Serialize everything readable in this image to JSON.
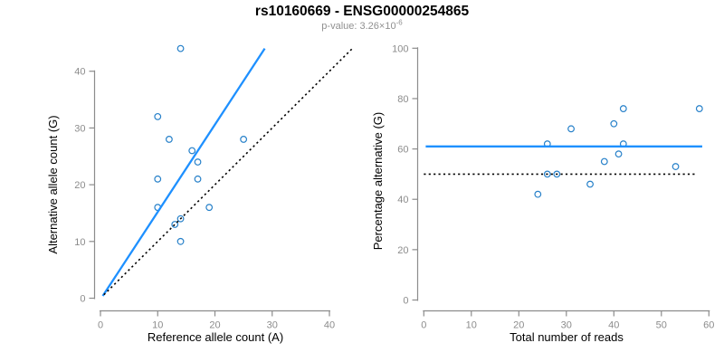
{
  "header": {
    "title": "rs10160669 - ENSG00000254865",
    "subtitle_base": "p-value: 3.26×10",
    "subtitle_exponent": "-6"
  },
  "colors": {
    "accent_blue": "#1E90FF",
    "point_blue": "#2680c9",
    "axis_gray": "#8c8c8c",
    "subtitle_gray": "#909090",
    "dotted_black": "#000000",
    "background": "#ffffff"
  },
  "chart_data": [
    {
      "type": "scatter",
      "panel": "left",
      "xlabel": "Reference allele count (A)",
      "ylabel": "Alternative allele count (G)",
      "xlim": [
        0,
        40
      ],
      "ylim": [
        0,
        40
      ],
      "xticks": [
        0,
        10,
        20,
        30,
        40
      ],
      "yticks": [
        0,
        10,
        20,
        30,
        40
      ],
      "grid": false,
      "legend": null,
      "points": [
        [
          14,
          44
        ],
        [
          10,
          32
        ],
        [
          12,
          28
        ],
        [
          25,
          28
        ],
        [
          16,
          26
        ],
        [
          17,
          24
        ],
        [
          10,
          21
        ],
        [
          17,
          21
        ],
        [
          10,
          16
        ],
        [
          19,
          16
        ],
        [
          14,
          14
        ],
        [
          13,
          13
        ],
        [
          14,
          10
        ]
      ],
      "lines": [
        {
          "name": "fit-line",
          "style": "solid",
          "color": "#1E90FF",
          "width": 2.3,
          "from": [
            0.4,
            0.4
          ],
          "to": [
            28.7,
            44
          ],
          "slope": 1.53
        },
        {
          "name": "identity-line",
          "style": "dotted",
          "color": "#000000",
          "width": 1.6,
          "from": [
            0.6,
            0.6
          ],
          "to": [
            44.2,
            44.2
          ],
          "slope": 1
        }
      ]
    },
    {
      "type": "scatter",
      "panel": "right",
      "xlabel": "Total number of reads",
      "ylabel": "Percentage alternative (G)",
      "xlim": [
        0,
        60
      ],
      "ylim": [
        0,
        100
      ],
      "xticks": [
        0,
        10,
        20,
        30,
        40,
        50,
        60
      ],
      "yticks": [
        0,
        20,
        40,
        60,
        80,
        100
      ],
      "grid": false,
      "legend": null,
      "points": [
        [
          24,
          42
        ],
        [
          26,
          50
        ],
        [
          26,
          62
        ],
        [
          28,
          50
        ],
        [
          31,
          68
        ],
        [
          35,
          46
        ],
        [
          38,
          55
        ],
        [
          40,
          70
        ],
        [
          41,
          58
        ],
        [
          42,
          62
        ],
        [
          42,
          76
        ],
        [
          53,
          53
        ],
        [
          58,
          76
        ]
      ],
      "lines": [
        {
          "name": "mean-percentage-line",
          "style": "solid",
          "color": "#1E90FF",
          "width": 2.3,
          "y": 61,
          "from_x": 0.4,
          "to_x": 58.6
        },
        {
          "name": "null-50pct-line",
          "style": "dotted",
          "color": "#000000",
          "width": 1.6,
          "y": 50,
          "from_x": 0,
          "to_x": 57.5
        }
      ]
    }
  ]
}
